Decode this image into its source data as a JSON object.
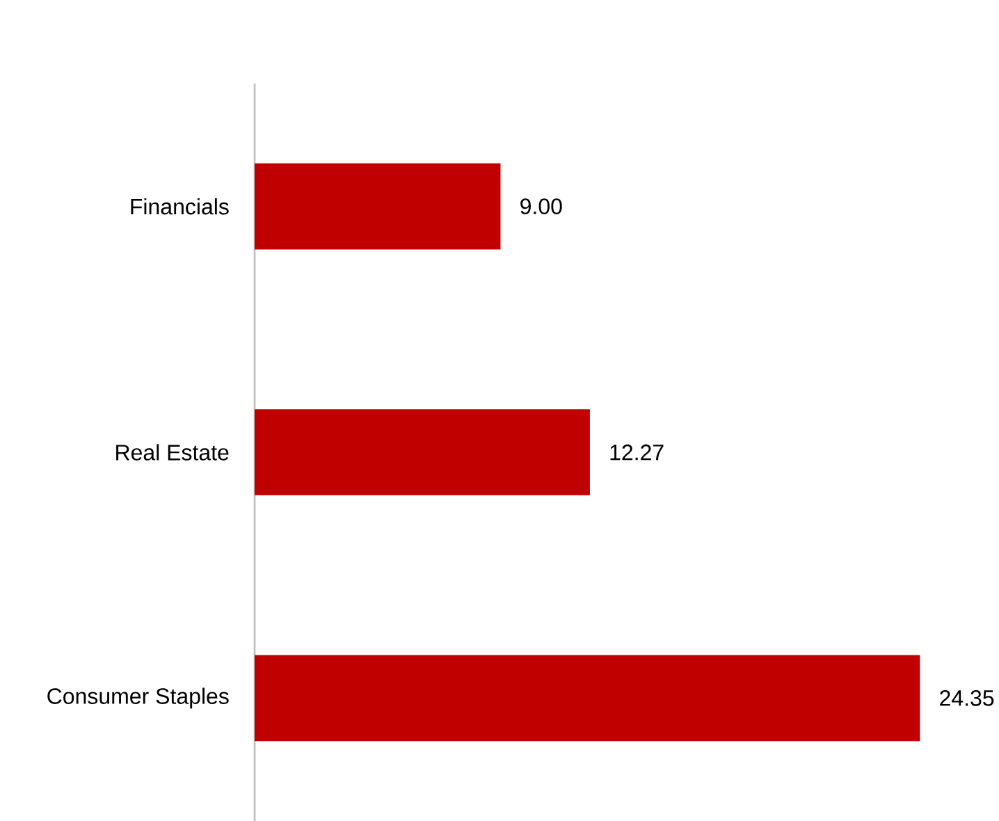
{
  "chart_data": {
    "type": "bar",
    "orientation": "horizontal",
    "categories": [
      "Financials",
      "Real Estate",
      "Consumer Staples"
    ],
    "values": [
      9.0,
      12.27,
      24.35
    ],
    "color": "#c00000",
    "value_labels": [
      "9.00",
      "12.27",
      "24.35"
    ],
    "tick_labels": "y"
  }
}
